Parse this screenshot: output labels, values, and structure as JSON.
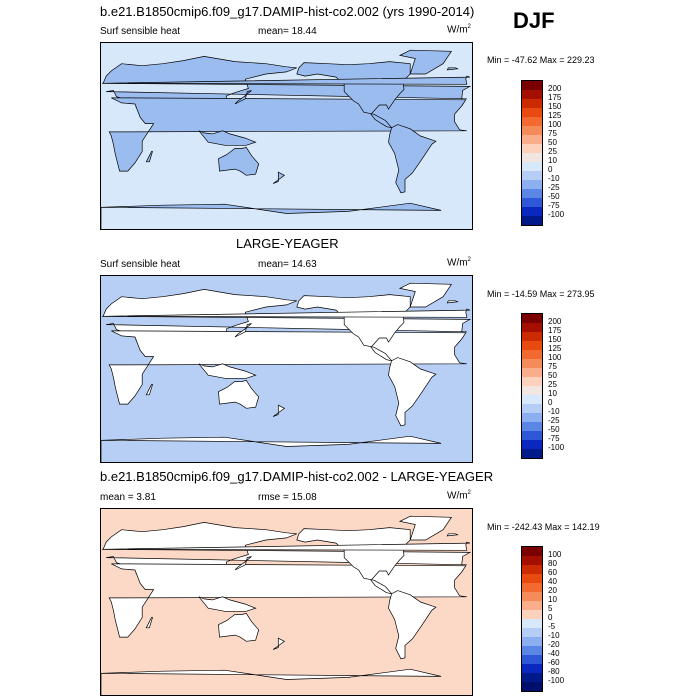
{
  "season": "DJF",
  "panels": [
    {
      "title": "b.e21.B1850cmip6.f09_g17.DAMIP-hist-co2.002 (yrs 1990-2014)",
      "left_label": "Surf sensible heat",
      "center_label": "mean=  18.44",
      "units": "W/m",
      "units_sup": "2",
      "minmax": "Min = -47.62 Max = 229.23",
      "colorbar_labels": [
        "200",
        "175",
        "150",
        "125",
        "100",
        "75",
        "50",
        "25",
        "10",
        "0",
        "-10",
        "-25",
        "-50",
        "-75",
        "-100"
      ],
      "colorbar_colors": [
        "#7a0000",
        "#a50f00",
        "#cc2a00",
        "#e84a10",
        "#f26a30",
        "#f58a5a",
        "#f9ad8a",
        "#fcd2bd",
        "#f2e6e2",
        "#d8e8fb",
        "#b6cef5",
        "#8cb0ef",
        "#5b86e6",
        "#2f58d8",
        "#0a28c0",
        "#001a8a"
      ],
      "fill": "#d8e8fb",
      "land_fill": "#9bbcef"
    },
    {
      "title": "LARGE-YEAGER",
      "left_label": "Surf sensible heat",
      "center_label": "mean=  14.63",
      "units": "W/m",
      "units_sup": "2",
      "minmax": "Min = -14.59 Max = 273.95",
      "colorbar_labels": [
        "200",
        "175",
        "150",
        "125",
        "100",
        "75",
        "50",
        "25",
        "10",
        "0",
        "-10",
        "-25",
        "-50",
        "-75",
        "-100"
      ],
      "colorbar_colors": [
        "#7a0000",
        "#a50f00",
        "#cc2a00",
        "#e84a10",
        "#f26a30",
        "#f58a5a",
        "#f9ad8a",
        "#fcd2bd",
        "#f2e6e2",
        "#d8e8fb",
        "#b6cef5",
        "#8cb0ef",
        "#5b86e6",
        "#2f58d8",
        "#0a28c0",
        "#001a8a"
      ],
      "fill": "#b7cff4",
      "land_fill": "#ffffff"
    },
    {
      "title": "b.e21.B1850cmip6.f09_g17.DAMIP-hist-co2.002 - LARGE-YEAGER",
      "left_label": "mean =   3.81",
      "center_label": "rmse =  15.08",
      "units": "W/m",
      "units_sup": "2",
      "minmax": "Min = -242.43 Max = 142.19",
      "colorbar_labels": [
        "100",
        "80",
        "60",
        "40",
        "20",
        "10",
        "5",
        "0",
        "-5",
        "-10",
        "-20",
        "-40",
        "-60",
        "-80",
        "-100"
      ],
      "colorbar_colors": [
        "#7a0000",
        "#a50f00",
        "#cc2a00",
        "#e84a10",
        "#f26a30",
        "#f58a5a",
        "#f9ad8a",
        "#fcd2bd",
        "#d8e8fb",
        "#b6cef5",
        "#8cb0ef",
        "#5b86e6",
        "#2f58d8",
        "#0a28c0",
        "#001a8a",
        "#00106a"
      ],
      "fill": "#fcd8c6",
      "land_fill": "#ffffff"
    }
  ]
}
